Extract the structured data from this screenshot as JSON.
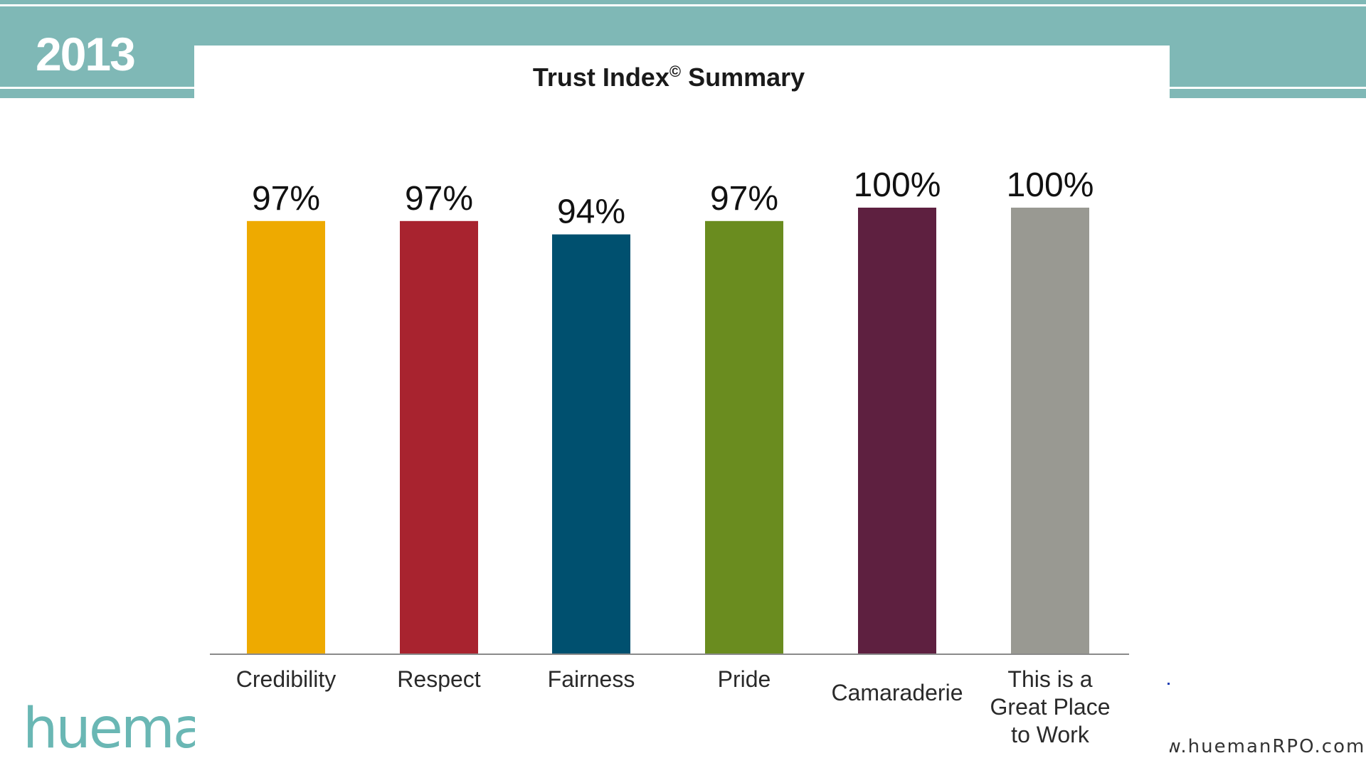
{
  "header": {
    "year": "2013"
  },
  "chart_data": {
    "type": "bar",
    "title": "Trust Index",
    "title_mark": "©",
    "title_suffix": "Summary",
    "categories": [
      "Credibility",
      "Respect",
      "Fairness",
      "Pride",
      "Camaraderie",
      "This is a Great Place to Work"
    ],
    "category_lines": [
      [
        "Credibility"
      ],
      [
        "Respect"
      ],
      [
        "Fairness"
      ],
      [
        "Pride"
      ],
      [
        "Camaraderie"
      ],
      [
        "This is a",
        "Great Place",
        "to Work"
      ]
    ],
    "values": [
      97,
      97,
      94,
      97,
      100,
      100
    ],
    "value_labels": [
      "97%",
      "97%",
      "94%",
      "97%",
      "100%",
      "100%"
    ],
    "colors": [
      "#eeaa00",
      "#a8232f",
      "#00506f",
      "#6a8c1f",
      "#5e2040",
      "#999992"
    ],
    "ylim": [
      0,
      100
    ],
    "grid": false,
    "legend": "none",
    "xlabel": "",
    "ylabel": ""
  },
  "footer": {
    "logo_text": "hueman",
    "website": "www.huemanRPO.com"
  }
}
